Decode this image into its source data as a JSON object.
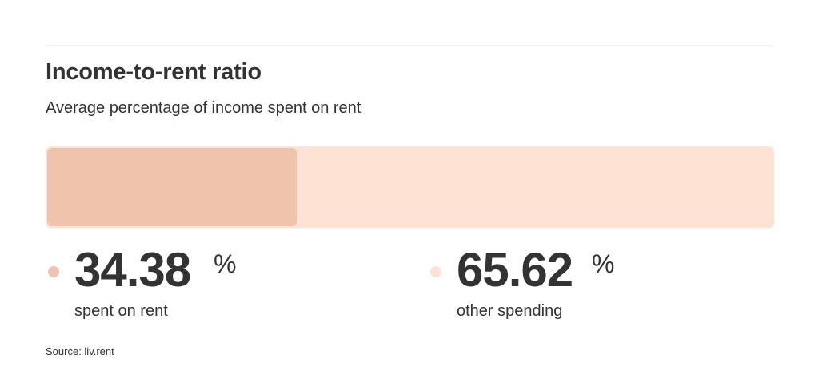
{
  "header": {
    "title": "Income-to-rent ratio",
    "subtitle": "Average percentage of income spent on rent"
  },
  "colors": {
    "rent": "#f0c3ad",
    "other": "#fee3d5"
  },
  "stats": {
    "rent": {
      "value": "34.38",
      "unit": "%",
      "label": "spent on rent"
    },
    "other": {
      "value": "65.62",
      "unit": "%",
      "label": "other spending"
    }
  },
  "source": "Source: liv.rent",
  "chart_data": {
    "type": "bar",
    "orientation": "horizontal-stacked",
    "title": "Income-to-rent ratio",
    "subtitle": "Average percentage of income spent on rent",
    "categories": [
      "spent on rent",
      "other spending"
    ],
    "values": [
      34.38,
      65.62
    ],
    "unit": "%",
    "xlim": [
      0,
      100
    ],
    "grid": false
  }
}
